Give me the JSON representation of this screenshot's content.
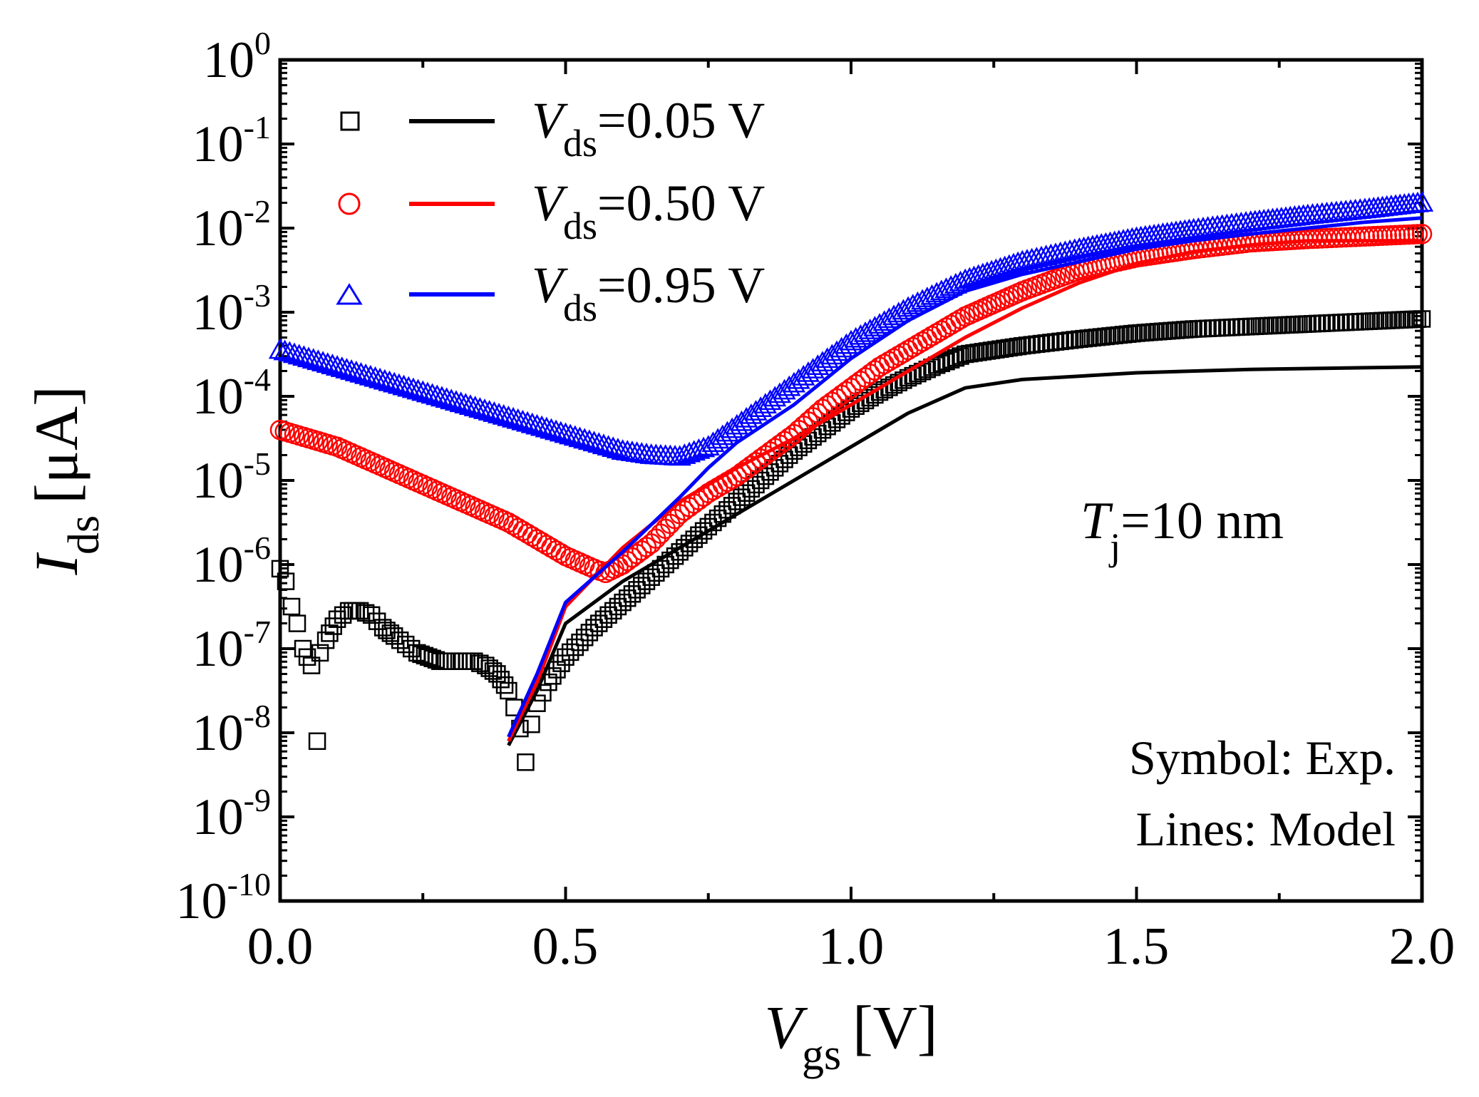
{
  "chart_data": {
    "type": "scatter",
    "title": "",
    "xlabel": {
      "main": "V",
      "sub": "gs",
      "unit": "[V]"
    },
    "ylabel": {
      "main": "I",
      "sub": "ds",
      "unit": "[μA]"
    },
    "xlim": [
      0.0,
      2.0
    ],
    "ylim_log10": [
      -10,
      0
    ],
    "y_scale": "log",
    "x_ticks": [
      "0.0",
      "0.5",
      "1.0",
      "1.5",
      "2.0"
    ],
    "y_ticks": [
      {
        "base": "10",
        "exp": "0"
      },
      {
        "base": "10",
        "exp": "-1"
      },
      {
        "base": "10",
        "exp": "-2"
      },
      {
        "base": "10",
        "exp": "-3"
      },
      {
        "base": "10",
        "exp": "-4"
      },
      {
        "base": "10",
        "exp": "-5"
      },
      {
        "base": "10",
        "exp": "-6"
      },
      {
        "base": "10",
        "exp": "-7"
      },
      {
        "base": "10",
        "exp": "-8"
      },
      {
        "base": "10",
        "exp": "-9"
      },
      {
        "base": "10",
        "exp": "-10"
      }
    ],
    "legend_placement": "top-left",
    "series": [
      {
        "name": "Vds=0.05 V",
        "label_main": "V",
        "label_sub": "ds",
        "label_rest": "=0.05 V",
        "color": "#000000",
        "marker": "square",
        "exp_points": [
          [
            0.0,
            -6.05
          ],
          [
            0.01,
            -6.2
          ],
          [
            0.02,
            -6.5
          ],
          [
            0.03,
            -6.7
          ],
          [
            0.04,
            -7.0
          ],
          [
            0.055,
            -7.2
          ],
          [
            0.065,
            -8.1
          ],
          [
            0.07,
            -7.05
          ],
          [
            0.08,
            -6.9
          ],
          [
            0.1,
            -6.65
          ],
          [
            0.12,
            -6.55
          ],
          [
            0.14,
            -6.55
          ],
          [
            0.16,
            -6.6
          ],
          [
            0.18,
            -6.75
          ],
          [
            0.2,
            -6.85
          ],
          [
            0.22,
            -6.95
          ],
          [
            0.24,
            -7.05
          ],
          [
            0.26,
            -7.1
          ],
          [
            0.28,
            -7.15
          ],
          [
            0.3,
            -7.15
          ],
          [
            0.32,
            -7.15
          ],
          [
            0.34,
            -7.15
          ],
          [
            0.36,
            -7.2
          ],
          [
            0.38,
            -7.3
          ],
          [
            0.4,
            -7.5
          ],
          [
            0.41,
            -7.7
          ],
          [
            0.42,
            -7.95
          ],
          [
            0.43,
            -8.35
          ],
          [
            0.44,
            -7.9
          ],
          [
            0.45,
            -7.65
          ],
          [
            0.47,
            -7.4
          ],
          [
            0.5,
            -7.1
          ],
          [
            0.55,
            -6.75
          ],
          [
            0.6,
            -6.45
          ],
          [
            0.65,
            -6.15
          ],
          [
            0.7,
            -5.85
          ],
          [
            0.75,
            -5.55
          ],
          [
            0.8,
            -5.25
          ],
          [
            0.85,
            -4.95
          ],
          [
            0.9,
            -4.65
          ],
          [
            0.95,
            -4.4
          ],
          [
            1.0,
            -4.15
          ],
          [
            1.05,
            -3.95
          ],
          [
            1.1,
            -3.78
          ],
          [
            1.15,
            -3.63
          ],
          [
            1.2,
            -3.5
          ],
          [
            1.3,
            -3.4
          ],
          [
            1.4,
            -3.32
          ],
          [
            1.5,
            -3.25
          ],
          [
            1.6,
            -3.2
          ],
          [
            1.7,
            -3.17
          ],
          [
            1.8,
            -3.14
          ],
          [
            1.9,
            -3.11
          ],
          [
            2.0,
            -3.08
          ]
        ],
        "model_line": [
          [
            0.4,
            -8.15
          ],
          [
            0.45,
            -7.5
          ],
          [
            0.5,
            -6.7
          ],
          [
            0.6,
            -6.2
          ],
          [
            0.7,
            -5.8
          ],
          [
            0.8,
            -5.4
          ],
          [
            0.9,
            -5.0
          ],
          [
            1.0,
            -4.6
          ],
          [
            1.1,
            -4.2
          ],
          [
            1.2,
            -3.9
          ],
          [
            1.3,
            -3.8
          ],
          [
            1.5,
            -3.72
          ],
          [
            1.7,
            -3.68
          ],
          [
            2.0,
            -3.65
          ]
        ]
      },
      {
        "name": "Vds=0.50 V",
        "label_main": "V",
        "label_sub": "ds",
        "label_rest": "=0.50 V",
        "color": "#ff0000",
        "marker": "circle",
        "exp_points": [
          [
            0.0,
            -4.4
          ],
          [
            0.05,
            -4.5
          ],
          [
            0.1,
            -4.6
          ],
          [
            0.15,
            -4.75
          ],
          [
            0.2,
            -4.9
          ],
          [
            0.25,
            -5.05
          ],
          [
            0.3,
            -5.2
          ],
          [
            0.35,
            -5.35
          ],
          [
            0.4,
            -5.5
          ],
          [
            0.45,
            -5.7
          ],
          [
            0.5,
            -5.9
          ],
          [
            0.55,
            -6.05
          ],
          [
            0.57,
            -6.1
          ],
          [
            0.6,
            -6.0
          ],
          [
            0.65,
            -5.75
          ],
          [
            0.7,
            -5.4
          ],
          [
            0.75,
            -5.15
          ],
          [
            0.8,
            -4.95
          ],
          [
            0.85,
            -4.7
          ],
          [
            0.9,
            -4.45
          ],
          [
            0.95,
            -4.15
          ],
          [
            1.0,
            -3.9
          ],
          [
            1.05,
            -3.65
          ],
          [
            1.1,
            -3.45
          ],
          [
            1.15,
            -3.25
          ],
          [
            1.2,
            -3.05
          ],
          [
            1.3,
            -2.75
          ],
          [
            1.4,
            -2.5
          ],
          [
            1.5,
            -2.35
          ],
          [
            1.6,
            -2.25
          ],
          [
            1.7,
            -2.17
          ],
          [
            1.8,
            -2.13
          ],
          [
            1.9,
            -2.1
          ],
          [
            2.0,
            -2.07
          ]
        ],
        "model_line": [
          [
            0.4,
            -8.1
          ],
          [
            0.45,
            -7.4
          ],
          [
            0.5,
            -6.5
          ],
          [
            0.6,
            -5.8
          ],
          [
            0.7,
            -5.25
          ],
          [
            0.8,
            -4.85
          ],
          [
            0.9,
            -4.5
          ],
          [
            1.0,
            -4.1
          ],
          [
            1.1,
            -3.7
          ],
          [
            1.2,
            -3.3
          ],
          [
            1.3,
            -2.95
          ],
          [
            1.4,
            -2.65
          ],
          [
            1.5,
            -2.42
          ],
          [
            1.6,
            -2.28
          ],
          [
            1.7,
            -2.2
          ],
          [
            1.8,
            -2.15
          ],
          [
            2.0,
            -2.15
          ]
        ]
      },
      {
        "name": "Vds=0.95 V",
        "label_main": "V",
        "label_sub": "ds",
        "label_rest": "=0.95 V",
        "color": "#0000ff",
        "marker": "triangle",
        "exp_points": [
          [
            0.0,
            -3.45
          ],
          [
            0.05,
            -3.55
          ],
          [
            0.1,
            -3.65
          ],
          [
            0.15,
            -3.75
          ],
          [
            0.2,
            -3.85
          ],
          [
            0.25,
            -3.95
          ],
          [
            0.3,
            -4.05
          ],
          [
            0.35,
            -4.15
          ],
          [
            0.4,
            -4.25
          ],
          [
            0.45,
            -4.35
          ],
          [
            0.5,
            -4.45
          ],
          [
            0.55,
            -4.55
          ],
          [
            0.6,
            -4.65
          ],
          [
            0.65,
            -4.7
          ],
          [
            0.7,
            -4.72
          ],
          [
            0.75,
            -4.6
          ],
          [
            0.8,
            -4.35
          ],
          [
            0.85,
            -4.1
          ],
          [
            0.9,
            -3.85
          ],
          [
            0.95,
            -3.6
          ],
          [
            1.0,
            -3.35
          ],
          [
            1.05,
            -3.15
          ],
          [
            1.1,
            -2.95
          ],
          [
            1.15,
            -2.78
          ],
          [
            1.2,
            -2.62
          ],
          [
            1.3,
            -2.4
          ],
          [
            1.4,
            -2.25
          ],
          [
            1.5,
            -2.12
          ],
          [
            1.6,
            -2.02
          ],
          [
            1.7,
            -1.93
          ],
          [
            1.8,
            -1.85
          ],
          [
            1.9,
            -1.78
          ],
          [
            2.0,
            -1.7
          ]
        ],
        "model_line": [
          [
            0.4,
            -8.05
          ],
          [
            0.45,
            -7.3
          ],
          [
            0.5,
            -6.45
          ],
          [
            0.6,
            -5.85
          ],
          [
            0.7,
            -5.2
          ],
          [
            0.75,
            -4.85
          ],
          [
            0.8,
            -4.55
          ],
          [
            0.9,
            -4.1
          ],
          [
            1.0,
            -3.55
          ],
          [
            1.1,
            -3.1
          ],
          [
            1.2,
            -2.75
          ],
          [
            1.3,
            -2.55
          ],
          [
            1.4,
            -2.4
          ],
          [
            1.5,
            -2.25
          ],
          [
            1.6,
            -2.15
          ],
          [
            1.7,
            -2.07
          ],
          [
            1.8,
            -2.0
          ],
          [
            1.9,
            -1.93
          ],
          [
            2.0,
            -1.88
          ]
        ]
      }
    ],
    "annotations": {
      "tj": {
        "main": "T",
        "sub": "j",
        "rest": "=10 nm"
      },
      "symbol_note": "Symbol: Exp.",
      "lines_note": "Lines: Model"
    }
  }
}
